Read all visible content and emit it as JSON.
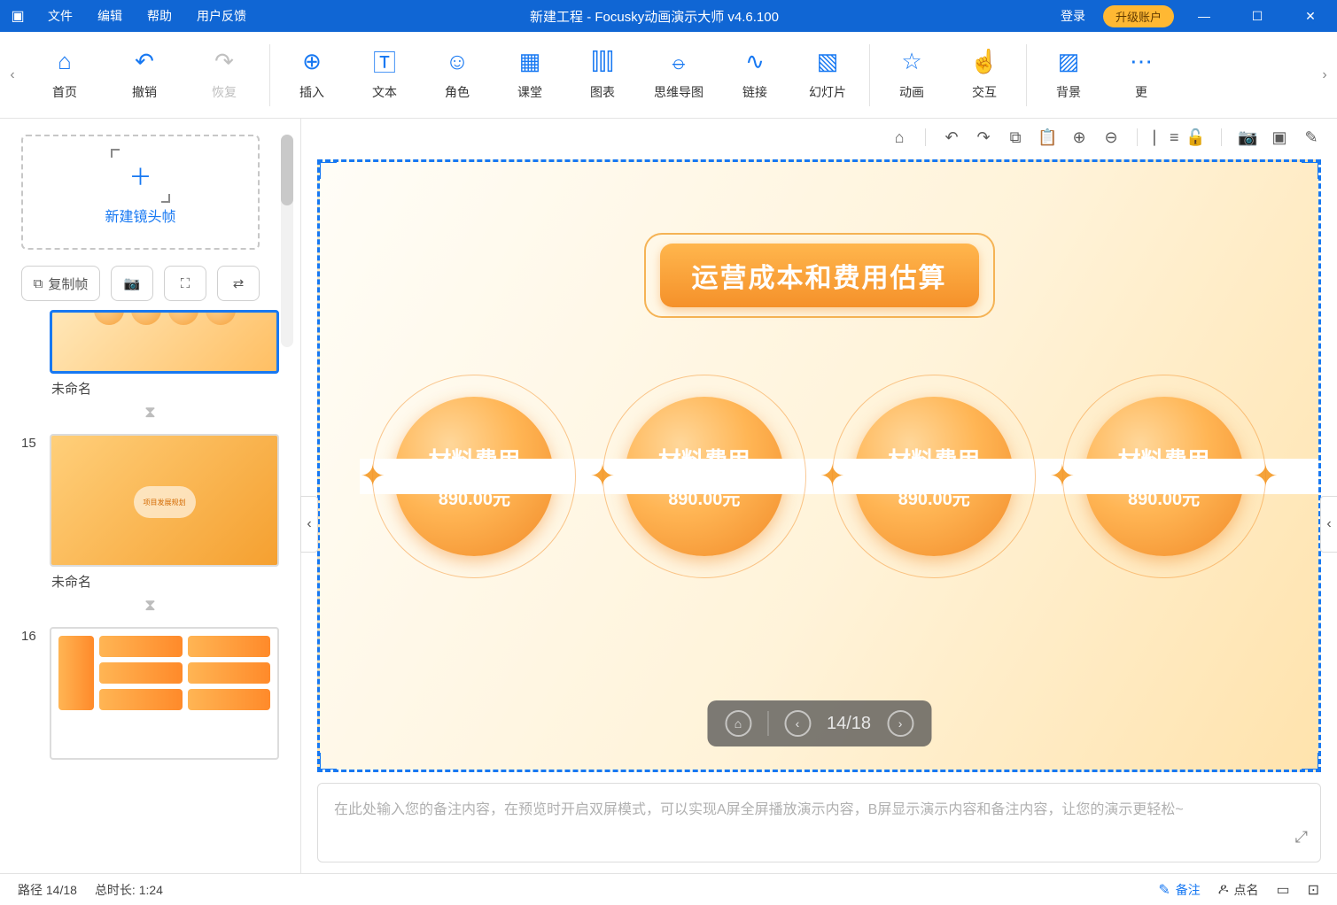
{
  "titlebar": {
    "menus": {
      "file": "文件",
      "edit": "编辑",
      "help": "帮助",
      "feedback": "用户反馈"
    },
    "title": "新建工程 - Focusky动画演示大师  v4.6.100",
    "login": "登录",
    "upgrade": "升级账户"
  },
  "toolbar": {
    "home": "首页",
    "undo": "撤销",
    "redo": "恢复",
    "insert": "插入",
    "text": "文本",
    "role": "角色",
    "class": "课堂",
    "chart": "图表",
    "mindmap": "思维导图",
    "link": "链接",
    "slide": "幻灯片",
    "anim": "动画",
    "interact": "交互",
    "bg": "背景",
    "more": "更"
  },
  "left_panel": {
    "newframe": "新建镜头帧",
    "copy": "复制帧",
    "slide14_label": "未命名",
    "slide15_num": "15",
    "slide15_label": "未命名",
    "slide16_num": "16",
    "slide16_label": "未命名"
  },
  "canvas": {
    "title": "运营成本和费用估算",
    "circle_label": "材料费用",
    "circle_value": "890.00元",
    "nav_counter": "14/18",
    "colors": {
      "accent": "#1778f2",
      "orange_a": "#ffb64d",
      "orange_b": "#f5912a"
    }
  },
  "notes": {
    "placeholder": "在此处输入您的备注内容，在预览时开启双屏模式，可以实现A屏全屏播放演示内容，B屏显示演示内容和备注内容，让您的演示更轻松~"
  },
  "status": {
    "path": "路径 14/18",
    "duration": "总时长: 1:24",
    "notes": "备注",
    "sign": "点名"
  }
}
